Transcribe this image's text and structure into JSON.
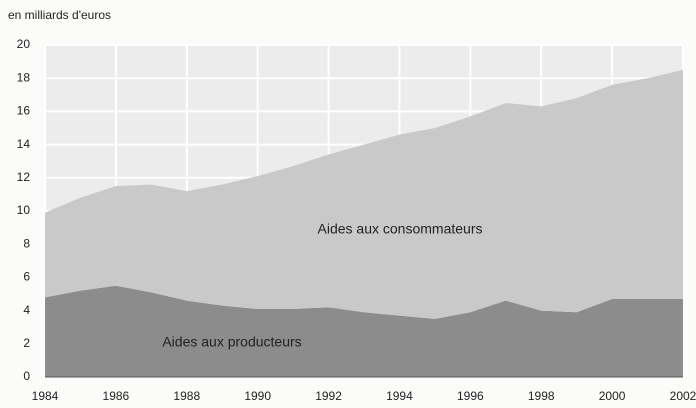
{
  "chart_data": {
    "type": "stacked_area",
    "y_label": "en milliards d'euros",
    "x": [
      1984,
      1985,
      1986,
      1987,
      1988,
      1989,
      1990,
      1991,
      1992,
      1993,
      1994,
      1995,
      1996,
      1997,
      1998,
      1999,
      2000,
      2001,
      2002
    ],
    "series": [
      {
        "name": "Aides aux producteurs",
        "color": "#8c8c8c",
        "values": [
          4.8,
          5.2,
          5.5,
          5.1,
          4.6,
          4.3,
          4.1,
          4.1,
          4.2,
          3.9,
          3.7,
          3.5,
          3.9,
          4.6,
          4.0,
          3.9,
          4.7,
          4.7,
          4.7
        ]
      },
      {
        "name": "Aides aux consommateurs",
        "color": "#c9c9c9",
        "values": [
          5.1,
          5.6,
          6.0,
          6.5,
          6.6,
          7.3,
          8.0,
          8.6,
          9.2,
          10.1,
          10.9,
          11.5,
          11.8,
          11.9,
          12.3,
          12.9,
          12.9,
          13.3,
          13.8
        ]
      }
    ],
    "xlim": [
      1984,
      2002
    ],
    "xticks": [
      1984,
      1986,
      1988,
      1990,
      1992,
      1994,
      1996,
      1998,
      2000,
      2002
    ],
    "ylim": [
      0,
      20
    ],
    "yticks": [
      0,
      2,
      4,
      6,
      8,
      10,
      12,
      14,
      16,
      18,
      20
    ],
    "grid": true
  }
}
